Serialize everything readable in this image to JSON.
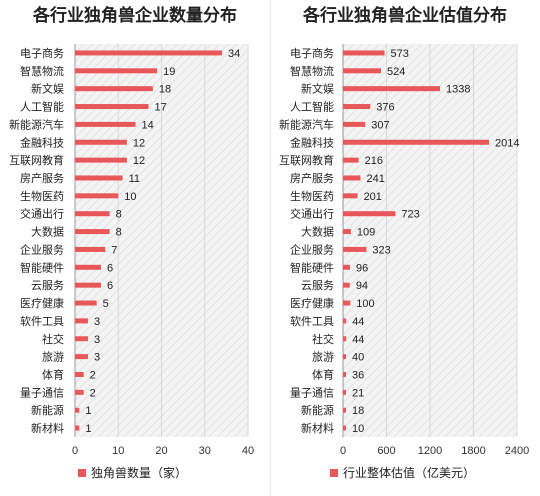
{
  "chart_data": [
    {
      "type": "bar",
      "orientation": "horizontal",
      "title": "各行业独角兽企业数量分布",
      "categories": [
        "电子商务",
        "智慧物流",
        "新文娱",
        "人工智能",
        "新能源汽车",
        "金融科技",
        "互联网教育",
        "房产服务",
        "生物医药",
        "交通出行",
        "大数据",
        "企业服务",
        "智能硬件",
        "云服务",
        "医疗健康",
        "软件工具",
        "社交",
        "旅游",
        "体育",
        "量子通信",
        "新能源",
        "新材料"
      ],
      "series": [
        {
          "name": "独角兽数量（家）",
          "values": [
            34,
            19,
            18,
            17,
            14,
            12,
            12,
            11,
            10,
            8,
            8,
            7,
            6,
            6,
            5,
            3,
            3,
            3,
            2,
            2,
            1,
            1
          ],
          "color": "#e8575a"
        }
      ],
      "xlim": [
        0,
        40
      ],
      "xticks": [
        "0",
        "10",
        "20",
        "30",
        "40"
      ],
      "grid": "vertical",
      "legend": "bottom"
    },
    {
      "type": "bar",
      "orientation": "horizontal",
      "title": "各行业独角兽企业估值分布",
      "categories": [
        "电子商务",
        "智慧物流",
        "新文娱",
        "人工智能",
        "新能源汽车",
        "金融科技",
        "互联网教育",
        "房产服务",
        "生物医药",
        "交通出行",
        "大数据",
        "企业服务",
        "智能硬件",
        "云服务",
        "医疗健康",
        "软件工具",
        "社交",
        "旅游",
        "体育",
        "量子通信",
        "新能源",
        "新材料"
      ],
      "series": [
        {
          "name": "行业整体估值（亿美元）",
          "values": [
            573,
            524,
            1338,
            376,
            307,
            2014,
            216,
            241,
            201,
            723,
            109,
            323,
            96,
            94,
            100,
            44,
            44,
            40,
            36,
            21,
            18,
            10
          ],
          "color": "#e8575a"
        }
      ],
      "xlim": [
        0,
        2400
      ],
      "xticks": [
        "0",
        "600",
        "1200",
        "1800",
        "2400"
      ],
      "grid": "vertical",
      "legend": "bottom"
    }
  ]
}
